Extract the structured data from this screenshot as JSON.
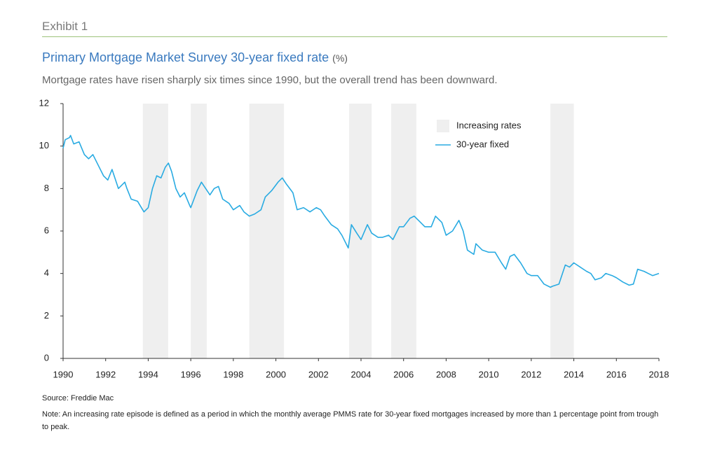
{
  "chart_data": {
    "type": "line",
    "exhibit": "Exhibit 1",
    "title": "Primary Mortgage Market Survey 30-year fixed rate",
    "title_unit": "(%)",
    "subtitle": "Mortgage rates have risen sharply six times since 1990, but the overall trend has been downward.",
    "source": "Source: Freddie Mac",
    "note": "Note: An increasing rate episode is defined as a period in which the monthly average PMMS rate for 30-year fixed mortgages increased by more than 1 percentage point from trough to peak.",
    "x": [
      1990.0,
      1990.1,
      1990.3,
      1990.35,
      1990.5,
      1990.75,
      1991.0,
      1991.2,
      1991.4,
      1991.6,
      1991.9,
      1992.1,
      1992.3,
      1992.6,
      1992.9,
      1993.0,
      1993.2,
      1993.5,
      1993.8,
      1994.0,
      1994.2,
      1994.4,
      1994.6,
      1994.8,
      1994.95,
      1995.1,
      1995.3,
      1995.5,
      1995.7,
      1995.95,
      1996.0,
      1996.3,
      1996.5,
      1996.7,
      1996.9,
      1997.1,
      1997.3,
      1997.5,
      1997.8,
      1998.0,
      1998.3,
      1998.5,
      1998.75,
      1999.0,
      1999.3,
      1999.5,
      1999.8,
      2000.1,
      2000.3,
      2000.5,
      2000.8,
      2001.0,
      2001.3,
      2001.6,
      2001.9,
      2002.1,
      2002.3,
      2002.6,
      2002.9,
      2003.1,
      2003.4,
      2003.55,
      2003.8,
      2004.0,
      2004.3,
      2004.5,
      2004.8,
      2005.0,
      2005.3,
      2005.5,
      2005.8,
      2006.0,
      2006.3,
      2006.5,
      2006.8,
      2007.0,
      2007.3,
      2007.5,
      2007.8,
      2008.0,
      2008.3,
      2008.6,
      2008.8,
      2009.0,
      2009.3,
      2009.4,
      2009.7,
      2010.0,
      2010.3,
      2010.6,
      2010.8,
      2011.0,
      2011.2,
      2011.5,
      2011.8,
      2012.0,
      2012.3,
      2012.6,
      2012.9,
      2013.0,
      2013.3,
      2013.6,
      2013.8,
      2014.0,
      2014.3,
      2014.6,
      2014.8,
      2015.0,
      2015.3,
      2015.5,
      2015.8,
      2016.0,
      2016.3,
      2016.6,
      2016.8,
      2017.0,
      2017.3,
      2017.5,
      2017.7,
      2018.0
    ],
    "series": [
      {
        "name": "30-year fixed",
        "color": "#29abe2",
        "values": [
          9.9,
          10.3,
          10.4,
          10.5,
          10.1,
          10.2,
          9.6,
          9.4,
          9.6,
          9.2,
          8.6,
          8.4,
          8.9,
          8.0,
          8.3,
          8.0,
          7.5,
          7.4,
          6.9,
          7.1,
          8.0,
          8.6,
          8.5,
          9.0,
          9.2,
          8.8,
          8.0,
          7.6,
          7.8,
          7.2,
          7.1,
          7.9,
          8.3,
          8.0,
          7.7,
          8.0,
          8.1,
          7.5,
          7.3,
          7.0,
          7.2,
          6.9,
          6.7,
          6.8,
          7.0,
          7.6,
          7.9,
          8.3,
          8.5,
          8.2,
          7.8,
          7.0,
          7.1,
          6.9,
          7.1,
          7.0,
          6.7,
          6.3,
          6.1,
          5.8,
          5.2,
          6.3,
          5.9,
          5.6,
          6.3,
          5.9,
          5.7,
          5.7,
          5.8,
          5.6,
          6.2,
          6.2,
          6.6,
          6.7,
          6.4,
          6.2,
          6.2,
          6.7,
          6.4,
          5.8,
          6.0,
          6.5,
          6.0,
          5.1,
          4.9,
          5.4,
          5.1,
          5.0,
          5.0,
          4.5,
          4.2,
          4.8,
          4.9,
          4.5,
          4.0,
          3.9,
          3.9,
          3.5,
          3.35,
          3.4,
          3.5,
          4.4,
          4.3,
          4.5,
          4.3,
          4.1,
          4.0,
          3.7,
          3.8,
          4.0,
          3.9,
          3.8,
          3.6,
          3.45,
          3.5,
          4.2,
          4.1,
          4.0,
          3.9,
          4.0
        ]
      }
    ],
    "shaded": {
      "name": "Increasing rates",
      "color": "#efefef",
      "ranges": [
        [
          1993.75,
          1994.94
        ],
        [
          1996.0,
          1996.75
        ],
        [
          1998.75,
          2000.38
        ],
        [
          2003.44,
          2004.5
        ],
        [
          2005.42,
          2006.6
        ],
        [
          2012.9,
          2014.0
        ]
      ]
    },
    "xlim": [
      1990,
      2018
    ],
    "xticks": [
      1990,
      1992,
      1994,
      1996,
      1998,
      2000,
      2002,
      2004,
      2006,
      2008,
      2010,
      2012,
      2014,
      2016,
      2018
    ],
    "ylim": [
      0,
      12
    ],
    "yticks": [
      0,
      2,
      4,
      6,
      8,
      10,
      12
    ],
    "legend": "upper right"
  }
}
